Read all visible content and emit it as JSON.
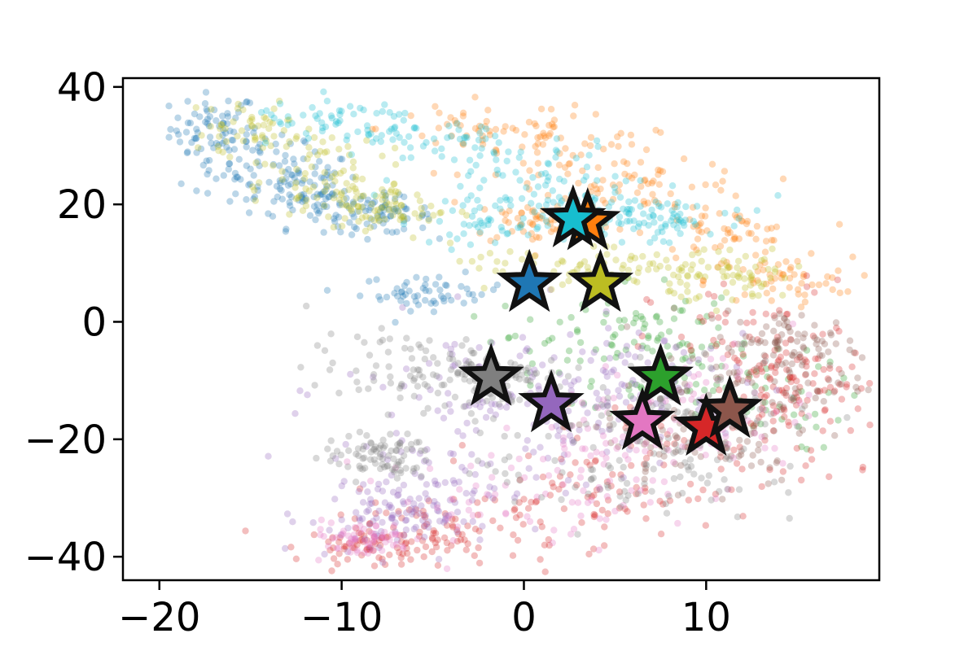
{
  "chart_data": {
    "type": "scatter",
    "title": "",
    "xlabel": "",
    "ylabel": "",
    "xlim": [
      -22,
      19.5
    ],
    "ylim": [
      -44,
      41.5
    ],
    "x_ticks": [
      -20,
      -10,
      0,
      10
    ],
    "y_ticks": [
      -40,
      -20,
      0,
      20,
      40
    ],
    "x_tick_labels": [
      "−20",
      "−10",
      "0",
      "10"
    ],
    "y_tick_labels": [
      "−40",
      "−20",
      "0",
      "20",
      "40"
    ],
    "grid": false,
    "legend": "none",
    "point_alpha": 0.3,
    "series": [
      {
        "color": "#1f77b4",
        "centroid": [
          0.3,
          6.5
        ],
        "cloud": [
          [
            -17,
            33,
            1.2,
            3
          ],
          [
            -15,
            28,
            2,
            3
          ],
          [
            -13,
            24,
            2,
            2.5
          ],
          [
            -11,
            20,
            2,
            2
          ],
          [
            -5,
            5,
            2,
            1.5
          ],
          [
            -8,
            18,
            1.5,
            1.5
          ]
        ],
        "points": 340
      },
      {
        "color": "#ff7f0e",
        "centroid": [
          3.5,
          17
        ],
        "cloud": [
          [
            -2,
            33,
            3,
            2.5
          ],
          [
            3,
            28,
            3,
            3
          ],
          [
            7,
            23,
            3,
            2
          ],
          [
            11,
            15,
            2,
            2
          ],
          [
            14,
            7,
            2,
            2
          ],
          [
            1,
            17,
            2,
            2
          ]
        ],
        "points": 320
      },
      {
        "color": "#2ca02c",
        "centroid": [
          7.5,
          -9.5
        ],
        "cloud": [
          [
            6,
            0,
            3,
            4
          ],
          [
            9,
            -8,
            3,
            4
          ],
          [
            12,
            -14,
            3,
            4
          ],
          [
            4,
            -5,
            3,
            4
          ]
        ],
        "points": 170
      },
      {
        "color": "#d62728",
        "centroid": [
          10,
          -18
        ],
        "cloud": [
          [
            13,
            -5,
            3,
            6
          ],
          [
            10,
            -20,
            4,
            5
          ],
          [
            3,
            -30,
            4,
            4
          ],
          [
            -4,
            -36,
            3,
            2.5
          ],
          [
            -8,
            -38,
            2,
            1.5
          ],
          [
            15,
            -12,
            2,
            4
          ]
        ],
        "points": 420
      },
      {
        "color": "#9467bd",
        "centroid": [
          1.5,
          -14
        ],
        "cloud": [
          [
            -2,
            -12,
            4,
            6
          ],
          [
            2,
            -18,
            4,
            5
          ],
          [
            -5,
            -28,
            3,
            4
          ],
          [
            -8,
            -34,
            2,
            3
          ],
          [
            6,
            -10,
            3,
            4
          ]
        ],
        "points": 360
      },
      {
        "color": "#8c564b",
        "centroid": [
          11.3,
          -15
        ],
        "cloud": [
          [
            13,
            -10,
            3,
            5
          ],
          [
            10,
            -20,
            3,
            4
          ],
          [
            15,
            -4,
            2,
            3
          ]
        ],
        "points": 220
      },
      {
        "color": "#e377c2",
        "centroid": [
          6.5,
          -17
        ],
        "cloud": [
          [
            6,
            -20,
            3,
            5
          ],
          [
            -9,
            -37,
            1.5,
            1.5
          ],
          [
            0,
            -30,
            4,
            4
          ],
          [
            10,
            -14,
            3,
            5
          ]
        ],
        "points": 240
      },
      {
        "color": "#7f7f7f",
        "centroid": [
          -1.8,
          -9.5
        ],
        "cloud": [
          [
            -6,
            -8,
            3,
            3
          ],
          [
            -2,
            -10,
            2,
            3
          ],
          [
            -8,
            -23,
            1.5,
            2
          ],
          [
            5,
            -25,
            4,
            5
          ],
          [
            10,
            -15,
            3,
            5
          ]
        ],
        "points": 420
      },
      {
        "color": "#bcbd22",
        "centroid": [
          4.2,
          6.5
        ],
        "cloud": [
          [
            -15,
            33,
            1.5,
            2.5
          ],
          [
            -12,
            27,
            2,
            3
          ],
          [
            -10,
            21,
            2,
            2.5
          ],
          [
            -7,
            19,
            1.5,
            1.5
          ],
          [
            2,
            9,
            3,
            2
          ],
          [
            8,
            9,
            3,
            2
          ],
          [
            12,
            7,
            2,
            2
          ]
        ],
        "points": 340
      },
      {
        "color": "#17becf",
        "centroid": [
          2.7,
          17.5
        ],
        "cloud": [
          [
            -10,
            34,
            2.5,
            2
          ],
          [
            -5,
            30,
            3,
            3
          ],
          [
            0,
            25,
            3,
            3
          ],
          [
            5,
            20,
            3,
            2.5
          ],
          [
            -1,
            17,
            2,
            2
          ],
          [
            7,
            17,
            2,
            1.5
          ]
        ],
        "points": 320
      }
    ]
  }
}
